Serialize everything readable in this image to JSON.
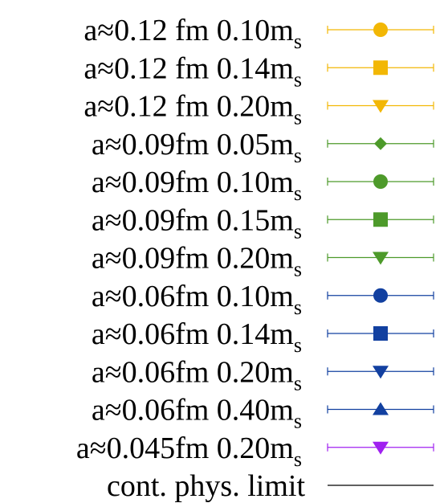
{
  "legend": {
    "entries": [
      {
        "label": "a≈0.12 fm 0.10m",
        "subscript": "s",
        "color": "#f2b705",
        "marker": "circle"
      },
      {
        "label": "a≈0.12 fm 0.14m",
        "subscript": "s",
        "color": "#f2b705",
        "marker": "square"
      },
      {
        "label": "a≈0.12 fm 0.20m",
        "subscript": "s",
        "color": "#f2b705",
        "marker": "triangle-down"
      },
      {
        "label": "a≈0.09fm 0.05m",
        "subscript": "s",
        "color": "#4d9a2a",
        "marker": "diamond"
      },
      {
        "label": "a≈0.09fm 0.10m",
        "subscript": "s",
        "color": "#4d9a2a",
        "marker": "circle"
      },
      {
        "label": "a≈0.09fm 0.15m",
        "subscript": "s",
        "color": "#4d9a2a",
        "marker": "square"
      },
      {
        "label": "a≈0.09fm 0.20m",
        "subscript": "s",
        "color": "#4d9a2a",
        "marker": "triangle-down"
      },
      {
        "label": "a≈0.06fm 0.10m",
        "subscript": "s",
        "color": "#1240a0",
        "marker": "circle"
      },
      {
        "label": "a≈0.06fm 0.14m",
        "subscript": "s",
        "color": "#1240a0",
        "marker": "square"
      },
      {
        "label": "a≈0.06fm 0.20m",
        "subscript": "s",
        "color": "#1240a0",
        "marker": "triangle-down"
      },
      {
        "label": "a≈0.06fm 0.40m",
        "subscript": "s",
        "color": "#1240a0",
        "marker": "triangle-up"
      },
      {
        "label": "a≈0.045fm 0.20m",
        "subscript": "s",
        "color": "#a020f0",
        "marker": "triangle-down"
      },
      {
        "label": "cont. phys. limit",
        "color": "#000000",
        "marker": "none"
      }
    ]
  }
}
